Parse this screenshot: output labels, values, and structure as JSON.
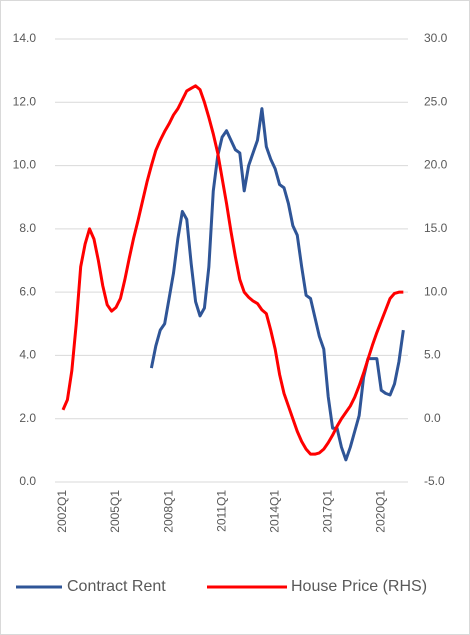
{
  "chart_data": {
    "type": "line",
    "categories": [
      "2002Q1",
      null,
      null,
      null,
      null,
      null,
      null,
      null,
      null,
      null,
      null,
      null,
      "2005Q1",
      null,
      null,
      null,
      null,
      null,
      null,
      null,
      null,
      null,
      null,
      null,
      "2008Q1",
      null,
      null,
      null,
      null,
      null,
      null,
      null,
      null,
      null,
      null,
      null,
      "2011Q1",
      null,
      null,
      null,
      null,
      null,
      null,
      null,
      null,
      null,
      null,
      null,
      "2014Q1",
      null,
      null,
      null,
      null,
      null,
      null,
      null,
      null,
      null,
      null,
      null,
      "2017Q1",
      null,
      null,
      null,
      null,
      null,
      null,
      null,
      null,
      null,
      null,
      null,
      "2020Q1",
      null,
      null,
      null,
      null,
      null
    ],
    "series": [
      {
        "name": "Contract Rent",
        "color": "#2f5597",
        "values": [
          null,
          null,
          null,
          null,
          null,
          null,
          null,
          null,
          null,
          null,
          null,
          null,
          null,
          null,
          null,
          null,
          null,
          null,
          null,
          null,
          3.6,
          4.3,
          4.8,
          5.0,
          5.8,
          6.6,
          7.7,
          8.55,
          8.3,
          6.9,
          5.7,
          5.25,
          5.5,
          6.8,
          9.2,
          10.3,
          10.9,
          11.1,
          10.8,
          10.5,
          10.4,
          9.2,
          10.0,
          10.4,
          10.8,
          11.8,
          10.6,
          10.2,
          9.9,
          9.4,
          9.3,
          8.8,
          8.1,
          7.8,
          6.8,
          5.9,
          5.8,
          5.2,
          4.6,
          4.2,
          2.7,
          1.7,
          1.7,
          1.1,
          0.7,
          1.1,
          1.6,
          2.1,
          3.3,
          3.9,
          3.9,
          3.9,
          2.9,
          2.8,
          2.75,
          3.1,
          3.8,
          4.8
        ]
      },
      {
        "name": "House Price (RHS)",
        "color": "#ff0000",
        "axis": "y2",
        "values": [
          0.7,
          1.5,
          3.8,
          7.5,
          12.0,
          13.8,
          15.0,
          14.2,
          12.5,
          10.5,
          9.0,
          8.5,
          8.8,
          9.5,
          11.0,
          12.7,
          14.3,
          15.7,
          17.2,
          18.7,
          20.0,
          21.2,
          22.0,
          22.7,
          23.3,
          24.0,
          24.5,
          25.2,
          25.9,
          26.1,
          26.3,
          26.0,
          25.0,
          23.8,
          22.5,
          21.0,
          19.0,
          17.0,
          14.8,
          12.8,
          11.0,
          10.0,
          9.6,
          9.3,
          9.1,
          8.6,
          8.3,
          7.0,
          5.5,
          3.5,
          2.0,
          1.0,
          0.0,
          -1.0,
          -1.8,
          -2.4,
          -2.8,
          -2.8,
          -2.7,
          -2.4,
          -1.9,
          -1.3,
          -0.6,
          0.0,
          0.5,
          1.0,
          1.7,
          2.6,
          3.6,
          4.7,
          5.8,
          6.8,
          7.7,
          8.6,
          9.5,
          9.9,
          10.0,
          10.0
        ]
      }
    ],
    "ylim": [
      0,
      14
    ],
    "yticks": [
      {
        "value": 0,
        "label": "0.0"
      },
      {
        "value": 2,
        "label": "2.0"
      },
      {
        "value": 4,
        "label": "4.0"
      },
      {
        "value": 6,
        "label": "6.0"
      },
      {
        "value": 8,
        "label": "8.0"
      },
      {
        "value": 10,
        "label": "10.0"
      },
      {
        "value": 12,
        "label": "12.0"
      },
      {
        "value": 14,
        "label": "14.0"
      }
    ],
    "y2lim": [
      -5,
      30
    ],
    "y2ticks": [
      {
        "value": -5,
        "label": "-5.0"
      },
      {
        "value": 0,
        "label": "0.0"
      },
      {
        "value": 5,
        "label": "5.0"
      },
      {
        "value": 10,
        "label": "10.0"
      },
      {
        "value": 15,
        "label": "15.0"
      },
      {
        "value": 20,
        "label": "20.0"
      },
      {
        "value": 25,
        "label": "25.0"
      },
      {
        "value": 30,
        "label": "30.0"
      }
    ],
    "grid": true,
    "legend": "bottom"
  }
}
